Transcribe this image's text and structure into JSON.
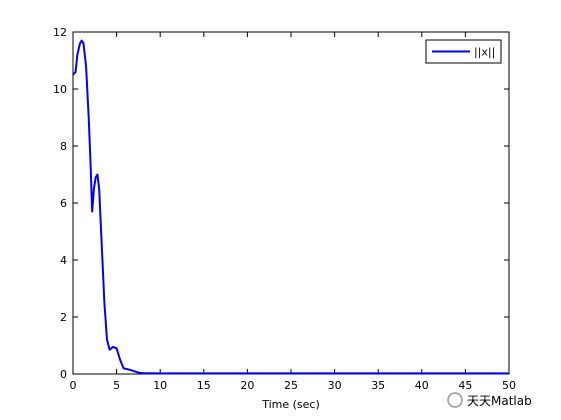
{
  "chart_data": {
    "type": "line",
    "xlabel": "Time (sec)",
    "x": [
      0,
      0.3,
      0.5,
      0.8,
      1.0,
      1.2,
      1.5,
      1.8,
      2.0,
      2.2,
      2.4,
      2.6,
      2.8,
      3.0,
      3.3,
      3.6,
      3.9,
      4.2,
      4.6,
      5.0,
      5.4,
      5.8,
      6.5,
      7.0,
      7.5,
      8,
      10,
      20,
      30,
      40,
      50
    ],
    "series": [
      {
        "name": "||x||",
        "color": "#0000ff",
        "values": [
          10.5,
          10.6,
          11.2,
          11.6,
          11.7,
          11.6,
          10.8,
          9.0,
          7.5,
          5.7,
          6.5,
          6.9,
          7.0,
          6.5,
          4.5,
          2.5,
          1.2,
          0.85,
          0.95,
          0.9,
          0.5,
          0.2,
          0.15,
          0.1,
          0.05,
          0.03,
          0.02,
          0.02,
          0.02,
          0.02,
          0.02
        ]
      }
    ],
    "xlim": [
      0,
      50
    ],
    "xticks": [
      0,
      5,
      10,
      15,
      20,
      25,
      30,
      35,
      40,
      45,
      50
    ],
    "ylim": [
      0,
      12
    ],
    "yticks": [
      0,
      2,
      4,
      6,
      8,
      10,
      12
    ],
    "legend": "upper-right"
  },
  "watermark": "天天Matlab"
}
